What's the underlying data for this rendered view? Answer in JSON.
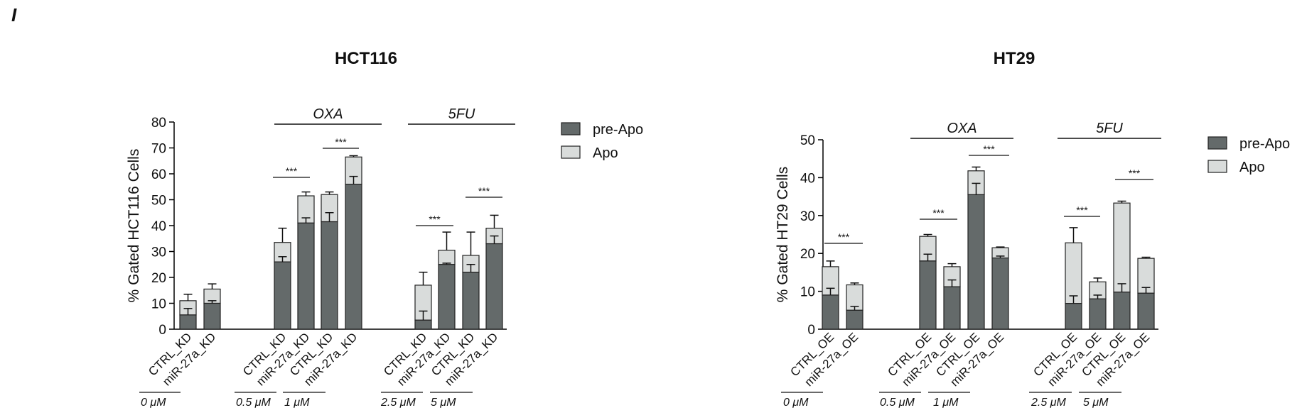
{
  "panel_label": "I",
  "colors": {
    "pre_apo": "#646a6a",
    "apo": "#d9dcdb",
    "axis": "#000000"
  },
  "chart_data": [
    {
      "type": "bar",
      "stacked": true,
      "title": "HCT116",
      "ylabel": "% Gated HCT116 Cells",
      "ylim": [
        0,
        80
      ],
      "yticks": [
        0,
        10,
        20,
        30,
        40,
        50,
        60,
        70,
        80
      ],
      "legend": [
        "pre-Apo",
        "Apo"
      ],
      "legend_position": "top-right",
      "categories": [
        "CTRL_KD",
        "miR-27a_KD",
        "CTRL_KD",
        "miR-27a_KD",
        "CTRL_KD",
        "miR-27a_KD",
        "CTRL_KD",
        "miR-27a_KD",
        "CTRL_KD",
        "miR-27a_KD"
      ],
      "series": [
        {
          "name": "pre-Apo",
          "values": [
            5.5,
            10,
            26,
            41,
            41.5,
            56,
            3.5,
            25,
            22,
            33
          ],
          "errors": [
            2.5,
            1,
            2,
            2,
            3.5,
            3,
            3.5,
            0.5,
            3,
            3
          ]
        },
        {
          "name": "Apo",
          "values": [
            5.5,
            5.5,
            7.5,
            10.5,
            10.5,
            10.5,
            13.5,
            5.5,
            6.5,
            6
          ],
          "errors": [
            2.5,
            2,
            5.5,
            1.5,
            1,
            0.5,
            5,
            7,
            9,
            5
          ]
        }
      ],
      "dose_labels": [
        "0 μM",
        "0.5 μM",
        "1 μM",
        "2.5 μM",
        "5 μM"
      ],
      "drug_labels": [
        "OXA",
        "5FU"
      ],
      "significance": [
        "***",
        "***",
        "***",
        "***"
      ]
    },
    {
      "type": "bar",
      "stacked": true,
      "title": "HT29",
      "ylabel": "% Gated HT29 Cells",
      "ylim": [
        0,
        50
      ],
      "yticks": [
        0,
        10,
        20,
        30,
        40,
        50
      ],
      "legend": [
        "pre-Apo",
        "Apo"
      ],
      "legend_position": "top-right",
      "categories": [
        "CTRL_OE",
        "miR-27a_OE",
        "CTRL_OE",
        "miR-27a_OE",
        "CTRL_OE",
        "miR-27a_OE",
        "CTRL_OE",
        "miR-27a_OE",
        "CTRL_OE",
        "miR-27a_OE"
      ],
      "series": [
        {
          "name": "pre-Apo",
          "values": [
            9,
            5,
            18,
            11.2,
            35.5,
            18.8,
            6.8,
            8,
            9.8,
            9.5
          ],
          "errors": [
            1.8,
            1,
            1.8,
            1.8,
            3,
            0.5,
            2,
            1,
            2.2,
            1.5
          ]
        },
        {
          "name": "Apo",
          "values": [
            7.5,
            6.7,
            6.5,
            5.3,
            6.3,
            2.7,
            16,
            4.5,
            23.5,
            9.2
          ],
          "errors": [
            1.5,
            0.5,
            0.5,
            0.8,
            1,
            0.2,
            4,
            1,
            0.5,
            0.3
          ]
        }
      ],
      "dose_labels": [
        "0 μM",
        "0.5 μM",
        "1 μM",
        "2.5 μM",
        "5 μM"
      ],
      "drug_labels": [
        "OXA",
        "5FU"
      ],
      "significance": [
        "***",
        "***",
        "***",
        "***",
        "***"
      ]
    }
  ]
}
